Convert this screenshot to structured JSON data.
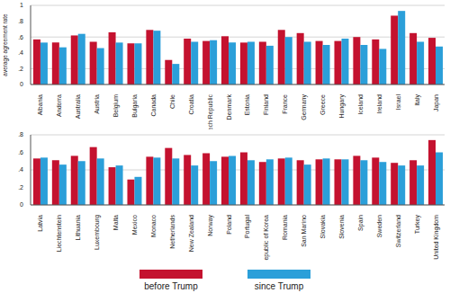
{
  "chart_data": [
    {
      "type": "bar",
      "ylabel": "average agreement rate",
      "categories": [
        "Albania",
        "Andorra",
        "Australia",
        "Austria",
        "Belgium",
        "Bulgaria",
        "Canada",
        "Chile",
        "Croatia",
        "Czech Republic",
        "Denmark",
        "Estonia",
        "Finland",
        "France",
        "Germany",
        "Greece",
        "Hungary",
        "Iceland",
        "Ireland",
        "Israel",
        "Italy",
        "Japan"
      ],
      "series": [
        {
          "name": "before Trump",
          "color": "#c4122f",
          "values": [
            0.57,
            0.53,
            0.62,
            0.54,
            0.66,
            0.52,
            0.69,
            0.31,
            0.58,
            0.55,
            0.61,
            0.53,
            0.54,
            0.69,
            0.65,
            0.55,
            0.55,
            0.6,
            0.57,
            0.87,
            0.65,
            0.59
          ]
        },
        {
          "name": "since Trump",
          "color": "#2b9fd9",
          "values": [
            0.53,
            0.47,
            0.64,
            0.46,
            0.53,
            0.52,
            0.68,
            0.26,
            0.54,
            0.56,
            0.53,
            0.54,
            0.49,
            0.6,
            0.54,
            0.5,
            0.58,
            0.5,
            0.45,
            0.93,
            0.54,
            0.48
          ]
        }
      ],
      "ylim": [
        0,
        1
      ],
      "yticks": [
        0,
        {
          "value": 0.2,
          "label": ".2"
        },
        {
          "value": 0.4,
          "label": ".4"
        },
        {
          "value": 0.6,
          "label": ".6"
        },
        {
          "value": 0.8,
          "label": ".8"
        },
        1
      ],
      "grid": true
    },
    {
      "type": "bar",
      "categories": [
        "Latvia",
        "Liechtenstein",
        "Lithuania",
        "Luxembourg",
        "Malta",
        "Mexico",
        "Monaco",
        "Netherlands",
        "New Zealand",
        "Norway",
        "Poland",
        "Portugal",
        "Republic of Korea",
        "Romania",
        "San Marino",
        "Slovakia",
        "Slovenia",
        "Spain",
        "Sweden",
        "Switzerland",
        "Turkey",
        "United Kingdom"
      ],
      "series": [
        {
          "name": "before Trump",
          "color": "#c4122f",
          "values": [
            0.53,
            0.51,
            0.56,
            0.66,
            0.43,
            0.29,
            0.55,
            0.65,
            0.57,
            0.59,
            0.55,
            0.6,
            0.49,
            0.53,
            0.51,
            0.52,
            0.52,
            0.56,
            0.54,
            0.48,
            0.51,
            0.74
          ]
        },
        {
          "name": "since Trump",
          "color": "#2b9fd9",
          "values": [
            0.54,
            0.46,
            0.5,
            0.53,
            0.45,
            0.32,
            0.54,
            0.53,
            0.45,
            0.5,
            0.56,
            0.51,
            0.52,
            0.54,
            0.46,
            0.53,
            0.52,
            0.51,
            0.49,
            0.45,
            0.45,
            0.6
          ]
        }
      ],
      "ylim": [
        0,
        0.8
      ],
      "yticks": [
        0,
        {
          "value": 0.2,
          "label": ".2"
        },
        {
          "value": 0.4,
          "label": ".4"
        },
        {
          "value": 0.6,
          "label": ".6"
        },
        {
          "value": 0.8,
          "label": ".8"
        }
      ],
      "grid": true,
      "legend": "bottom"
    }
  ]
}
